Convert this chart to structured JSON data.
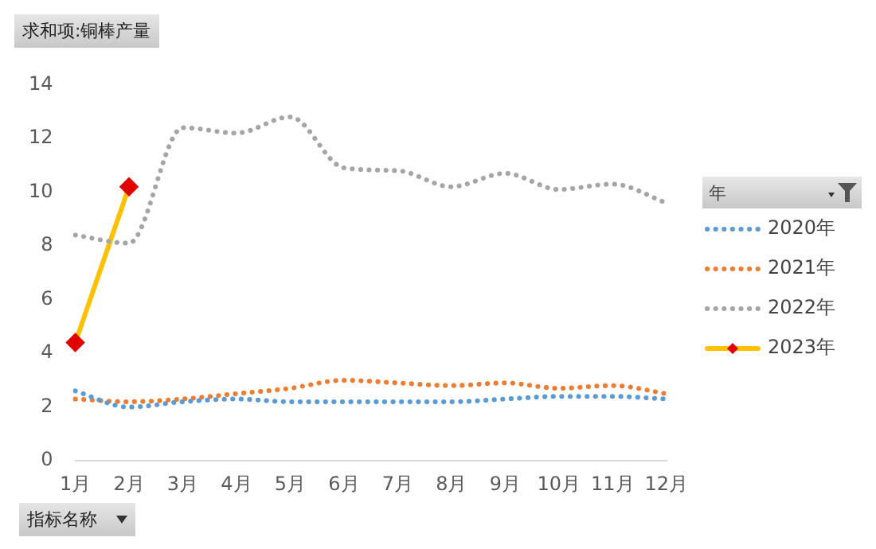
{
  "chart_data": {
    "type": "line",
    "title": "求和项:铜棒产量",
    "legend_title": "年",
    "annotations": [
      "指标名称"
    ],
    "categories": [
      "1月",
      "2月",
      "3月",
      "4月",
      "5月",
      "6月",
      "7月",
      "8月",
      "9月",
      "10月",
      "11月",
      "12月"
    ],
    "ylim": [
      0,
      14
    ],
    "yticks": [
      0,
      2,
      4,
      6,
      8,
      10,
      12,
      14
    ],
    "grid": false,
    "legend": "right",
    "series": [
      {
        "name": "2020年",
        "color": "#5b9bd5",
        "line_style": "dotted",
        "marker": "none",
        "values": [
          2.6,
          2.0,
          2.2,
          2.3,
          2.2,
          2.2,
          2.2,
          2.2,
          2.3,
          2.4,
          2.4,
          2.3
        ]
      },
      {
        "name": "2021年",
        "color": "#ed7d31",
        "line_style": "dotted",
        "marker": "none",
        "values": [
          2.3,
          2.2,
          2.3,
          2.5,
          2.7,
          3.0,
          2.9,
          2.8,
          2.9,
          2.7,
          2.8,
          2.5
        ]
      },
      {
        "name": "2022年",
        "color": "#a5a5a5",
        "line_style": "dotted",
        "marker": "none",
        "values": [
          8.4,
          8.1,
          12.4,
          12.2,
          12.8,
          10.9,
          10.8,
          10.2,
          10.7,
          10.1,
          10.3,
          9.6
        ]
      },
      {
        "name": "2023年",
        "color": "#ffc000",
        "line_style": "solid",
        "marker": "diamond",
        "values": [
          4.4,
          10.2,
          null,
          null,
          null,
          null,
          null,
          null,
          null,
          null,
          null,
          null
        ]
      }
    ]
  }
}
